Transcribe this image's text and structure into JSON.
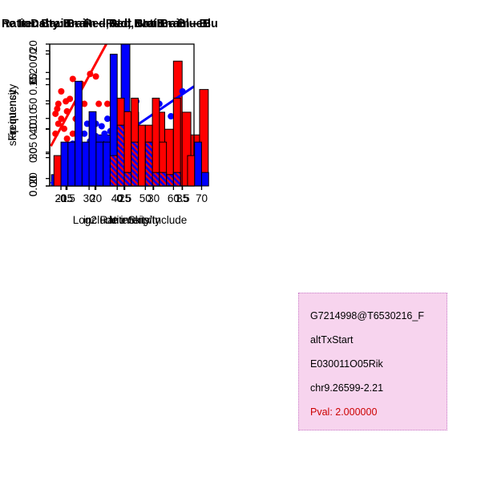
{
  "figure": {
    "background": "#FFFFFF"
  },
  "info_box": {
    "lines": [
      "G7214998@T6530216_F",
      "altTxStart",
      "E030011O05Rik",
      "chr9.26599-2.21"
    ],
    "pval": "Pval: 2.000000",
    "bg_color": "#F7D4EE",
    "border_color": "#C97FC9",
    "text_color": "#000000",
    "pval_color": "#CC0000"
  },
  "chart_data": [
    {
      "id": "ratio-hist",
      "type": "bar",
      "subtype": "histogram",
      "title": "RatioData: Brain – Red, Not Brain – Blu",
      "title_align": "left",
      "xlabel": "Log2 Ratio Skip/Include",
      "ylabel": "Frequency",
      "xlim": [
        -0.78,
        1.98
      ],
      "ylim": [
        0,
        0.25
      ],
      "margins": {
        "l": 62,
        "r": 38,
        "t": 55,
        "b": 68
      },
      "box": false,
      "grid": false,
      "colors": {
        "brain": "#FF0000",
        "not_brain": "#0000FF"
      },
      "xticks": [
        {
          "v": -0.5,
          "l": "-0.5"
        },
        {
          "v": 0.0,
          "l": ""
        },
        {
          "v": 0.5,
          "l": "0.5"
        },
        {
          "v": 1.0,
          "l": ""
        },
        {
          "v": 1.5,
          "l": "1.5"
        }
      ],
      "yticks": [
        {
          "v": 0.0,
          "l": "0.00"
        },
        {
          "v": 0.05,
          "l": ""
        },
        {
          "v": 0.1,
          "l": "0.10"
        },
        {
          "v": 0.15,
          "l": ""
        },
        {
          "v": 0.2,
          "l": "0.20"
        },
        {
          "v": 0.25,
          "l": ""
        }
      ],
      "bars": [
        {
          "x": -0.75,
          "w": 0.15,
          "h": 0.02,
          "f": "#0000FF"
        },
        {
          "x": -0.6,
          "w": 0.15,
          "h": 0.02,
          "f": "#0000FF"
        },
        {
          "x": -0.45,
          "w": 0.15,
          "h": 0.04,
          "f": "#0000FF"
        },
        {
          "x": -0.3,
          "w": 0.15,
          "h": 0.02,
          "f": "#0000FF"
        },
        {
          "x": -0.15,
          "w": 0.15,
          "h": 0.04,
          "f": "#0000FF"
        },
        {
          "x": 0.0,
          "w": 0.15,
          "h": 0.09,
          "f": "#0000FF"
        },
        {
          "x": 0.15,
          "w": 0.15,
          "h": 0.09,
          "f": "#0000FF"
        },
        {
          "x": 0.3,
          "w": 0.15,
          "h": 0.04,
          "f": "#0000FF"
        },
        {
          "x": 0.45,
          "w": 0.15,
          "h": 0.25,
          "f": "#0000FF"
        },
        {
          "x": 0.6,
          "w": 0.15,
          "h": 0.13,
          "f": "#0000FF"
        },
        {
          "x": 0.75,
          "w": 0.15,
          "h": 0.09,
          "f": "#0000FF"
        },
        {
          "x": 0.9,
          "w": 0.15,
          "h": 0.07,
          "f": "#0000FF"
        },
        {
          "x": 1.05,
          "w": 0.15,
          "h": 0.04,
          "f": "#0000FF"
        },
        {
          "x": 1.2,
          "w": 0.15,
          "h": 0.02,
          "f": "#0000FF"
        },
        {
          "x": -0.45,
          "w": 0.15,
          "h": 0.04,
          "f": "#FF0000"
        },
        {
          "x": 0.9,
          "w": 0.15,
          "h": 0.09,
          "f": "#FF0000"
        },
        {
          "x": 1.05,
          "w": 0.15,
          "h": 0.13,
          "f": "#FF0000"
        },
        {
          "x": 1.2,
          "w": 0.15,
          "h": 0.1,
          "f": "#FF0000"
        },
        {
          "x": 1.35,
          "w": 0.15,
          "h": 0.22,
          "f": "#FF0000"
        },
        {
          "x": 1.5,
          "w": 0.15,
          "h": 0.13,
          "f": "#FF0000"
        },
        {
          "x": 1.65,
          "w": 0.15,
          "h": 0.09,
          "f": "#FF0000"
        },
        {
          "x": 1.8,
          "w": 0.15,
          "h": 0.17,
          "f": "#FF0000"
        },
        {
          "x": -0.45,
          "w": 0.15,
          "h": 0.04,
          "f": "hatch"
        },
        {
          "x": 0.9,
          "w": 0.15,
          "h": 0.07,
          "f": "hatch"
        },
        {
          "x": 1.05,
          "w": 0.15,
          "h": 0.04,
          "f": "hatch"
        },
        {
          "x": 1.2,
          "w": 0.15,
          "h": 0.02,
          "f": "hatch"
        }
      ]
    },
    {
      "id": "scatter",
      "type": "scatter",
      "title": "Brain – Red, Not Brain – Blue",
      "title_align": "center",
      "xlabel": "include intensity",
      "ylabel": "skip intensity",
      "xlim": [
        12,
        37
      ],
      "ylim": [
        17,
        74
      ],
      "margins": {
        "l": 62,
        "r": 58,
        "t": 55,
        "b": 68
      },
      "box": true,
      "grid": false,
      "xticks": [
        {
          "v": 15,
          "l": "15"
        },
        {
          "v": 20,
          "l": "20"
        },
        {
          "v": 25,
          "l": "25"
        },
        {
          "v": 30,
          "l": "30"
        },
        {
          "v": 35,
          "l": "35"
        }
      ],
      "yticks": [
        {
          "v": 20,
          "l": "20"
        },
        {
          "v": 30,
          "l": "30"
        },
        {
          "v": 40,
          "l": "40"
        },
        {
          "v": 50,
          "l": "50"
        },
        {
          "v": 60,
          "l": "60"
        },
        {
          "v": 70,
          "l": "70"
        }
      ],
      "series": [
        {
          "name": "Brain",
          "color": "#FF0000",
          "points": [
            [
              13,
              38
            ],
            [
              13,
              46
            ],
            [
              13.3,
              48
            ],
            [
              13.5,
              50
            ],
            [
              13.5,
              42
            ],
            [
              14,
              44
            ],
            [
              14,
              55
            ],
            [
              14.5,
              40
            ],
            [
              14.8,
              51
            ],
            [
              15,
              47
            ],
            [
              15,
              36
            ],
            [
              15.5,
              52
            ],
            [
              16,
              60
            ],
            [
              16,
              38
            ],
            [
              16.5,
              44
            ],
            [
              17,
              41
            ],
            [
              17.5,
              58
            ],
            [
              18,
              50
            ],
            [
              19,
              62
            ],
            [
              20,
              61
            ],
            [
              20.5,
              50
            ],
            [
              22,
              50
            ]
          ]
        },
        {
          "name": "Not Brain",
          "color": "#0000FF",
          "points": [
            [
              15,
              29
            ],
            [
              16,
              34
            ],
            [
              17,
              36
            ],
            [
              17,
              22
            ],
            [
              17.5,
              30
            ],
            [
              18,
              38
            ],
            [
              18.5,
              42
            ],
            [
              19,
              35
            ],
            [
              19.5,
              39
            ],
            [
              20,
              37
            ],
            [
              20,
              42
            ],
            [
              20,
              23
            ],
            [
              20.5,
              33
            ],
            [
              21,
              36
            ],
            [
              21,
              41
            ],
            [
              21.5,
              38
            ],
            [
              22,
              35
            ],
            [
              22,
              44
            ],
            [
              22.5,
              39
            ],
            [
              23,
              37
            ],
            [
              23,
              21
            ],
            [
              23.5,
              42
            ],
            [
              24,
              36
            ],
            [
              24.5,
              50
            ],
            [
              25,
              41
            ],
            [
              25,
              28
            ],
            [
              26,
              24
            ],
            [
              26.5,
              37
            ],
            [
              27,
              51
            ],
            [
              28,
              22
            ],
            [
              29,
              35
            ],
            [
              30,
              29
            ],
            [
              31,
              50
            ],
            [
              33,
              45
            ],
            [
              35,
              55
            ]
          ]
        }
      ],
      "fit_lines": [
        {
          "x1": 12.2,
          "y1": 33,
          "x2": 21.8,
          "y2": 74,
          "color": "#FF0000"
        },
        {
          "x1": 12.2,
          "y1": 18,
          "x2": 37,
          "y2": 57,
          "color": "#0000FF"
        }
      ]
    },
    {
      "id": "intensity-hist",
      "type": "bar",
      "subtype": "histogram",
      "title": "ne Itensity: Brain – Red, Not Brain – B",
      "title_align": "left",
      "xlabel": "Intensity",
      "ylabel": "Frequency",
      "xlim": [
        16,
        73
      ],
      "ylim": [
        0,
        0.21
      ],
      "margins": {
        "l": 62,
        "r": 38,
        "t": 55,
        "b": 68
      },
      "box": false,
      "grid": false,
      "xticks": [
        {
          "v": 20,
          "l": "20"
        },
        {
          "v": 30,
          "l": "30"
        },
        {
          "v": 40,
          "l": "40"
        },
        {
          "v": 50,
          "l": "50"
        },
        {
          "v": 60,
          "l": "60"
        },
        {
          "v": 70,
          "l": "70"
        }
      ],
      "yticks": [
        {
          "v": 0.0,
          "l": "0.00"
        },
        {
          "v": 0.05,
          "l": "0.05"
        },
        {
          "v": 0.1,
          "l": "0.10"
        },
        {
          "v": 0.15,
          "l": "0.15"
        },
        {
          "v": 0.2,
          "l": "0.20"
        }
      ],
      "bars": [
        {
          "x": 20,
          "w": 2.5,
          "h": 0.065,
          "f": "#0000FF"
        },
        {
          "x": 22.5,
          "w": 2.5,
          "h": 0.065,
          "f": "#0000FF"
        },
        {
          "x": 25,
          "w": 2.5,
          "h": 0.155,
          "f": "#0000FF"
        },
        {
          "x": 27.5,
          "w": 2.5,
          "h": 0.065,
          "f": "#0000FF"
        },
        {
          "x": 30,
          "w": 2.5,
          "h": 0.11,
          "f": "#0000FF"
        },
        {
          "x": 32.5,
          "w": 2.5,
          "h": 0.065,
          "f": "#0000FF"
        },
        {
          "x": 35,
          "w": 2.5,
          "h": 0.065,
          "f": "#0000FF"
        },
        {
          "x": 37.5,
          "w": 2.5,
          "h": 0.195,
          "f": "#0000FF"
        },
        {
          "x": 40,
          "w": 2.5,
          "h": 0.09,
          "f": "#0000FF"
        },
        {
          "x": 45,
          "w": 2.5,
          "h": 0.065,
          "f": "#0000FF"
        },
        {
          "x": 50,
          "w": 2.5,
          "h": 0.065,
          "f": "#0000FF"
        },
        {
          "x": 55,
          "w": 2.5,
          "h": 0.02,
          "f": "#0000FF"
        },
        {
          "x": 60,
          "w": 2.5,
          "h": 0.02,
          "f": "#0000FF"
        },
        {
          "x": 67.5,
          "w": 2.5,
          "h": 0.065,
          "f": "#0000FF"
        },
        {
          "x": 70,
          "w": 2.5,
          "h": 0.02,
          "f": "#0000FF"
        },
        {
          "x": 17.5,
          "w": 2.5,
          "h": 0.045,
          "f": "#FF0000"
        },
        {
          "x": 40,
          "w": 2.5,
          "h": 0.13,
          "f": "#FF0000"
        },
        {
          "x": 42.5,
          "w": 2.5,
          "h": 0.11,
          "f": "#FF0000"
        },
        {
          "x": 45,
          "w": 2.5,
          "h": 0.13,
          "f": "#FF0000"
        },
        {
          "x": 47.5,
          "w": 2.5,
          "h": 0.09,
          "f": "#FF0000"
        },
        {
          "x": 50,
          "w": 2.5,
          "h": 0.09,
          "f": "#FF0000"
        },
        {
          "x": 52.5,
          "w": 2.5,
          "h": 0.13,
          "f": "#FF0000"
        },
        {
          "x": 55,
          "w": 2.5,
          "h": 0.065,
          "f": "#FF0000"
        },
        {
          "x": 60,
          "w": 2.5,
          "h": 0.13,
          "f": "#FF0000"
        },
        {
          "x": 65,
          "w": 2.5,
          "h": 0.045,
          "f": "#FF0000"
        },
        {
          "x": 37.5,
          "w": 2.5,
          "h": 0.045,
          "f": "hatch"
        },
        {
          "x": 40,
          "w": 2.5,
          "h": 0.09,
          "f": "hatch"
        },
        {
          "x": 42.5,
          "w": 2.5,
          "h": 0.02,
          "f": "hatch"
        },
        {
          "x": 45,
          "w": 2.5,
          "h": 0.065,
          "f": "hatch"
        },
        {
          "x": 50,
          "w": 2.5,
          "h": 0.065,
          "f": "hatch"
        },
        {
          "x": 52.5,
          "w": 2.5,
          "h": 0.02,
          "f": "hatch"
        },
        {
          "x": 55,
          "w": 2.5,
          "h": 0.02,
          "f": "hatch"
        },
        {
          "x": 60,
          "w": 2.5,
          "h": 0.02,
          "f": "hatch"
        }
      ]
    }
  ]
}
